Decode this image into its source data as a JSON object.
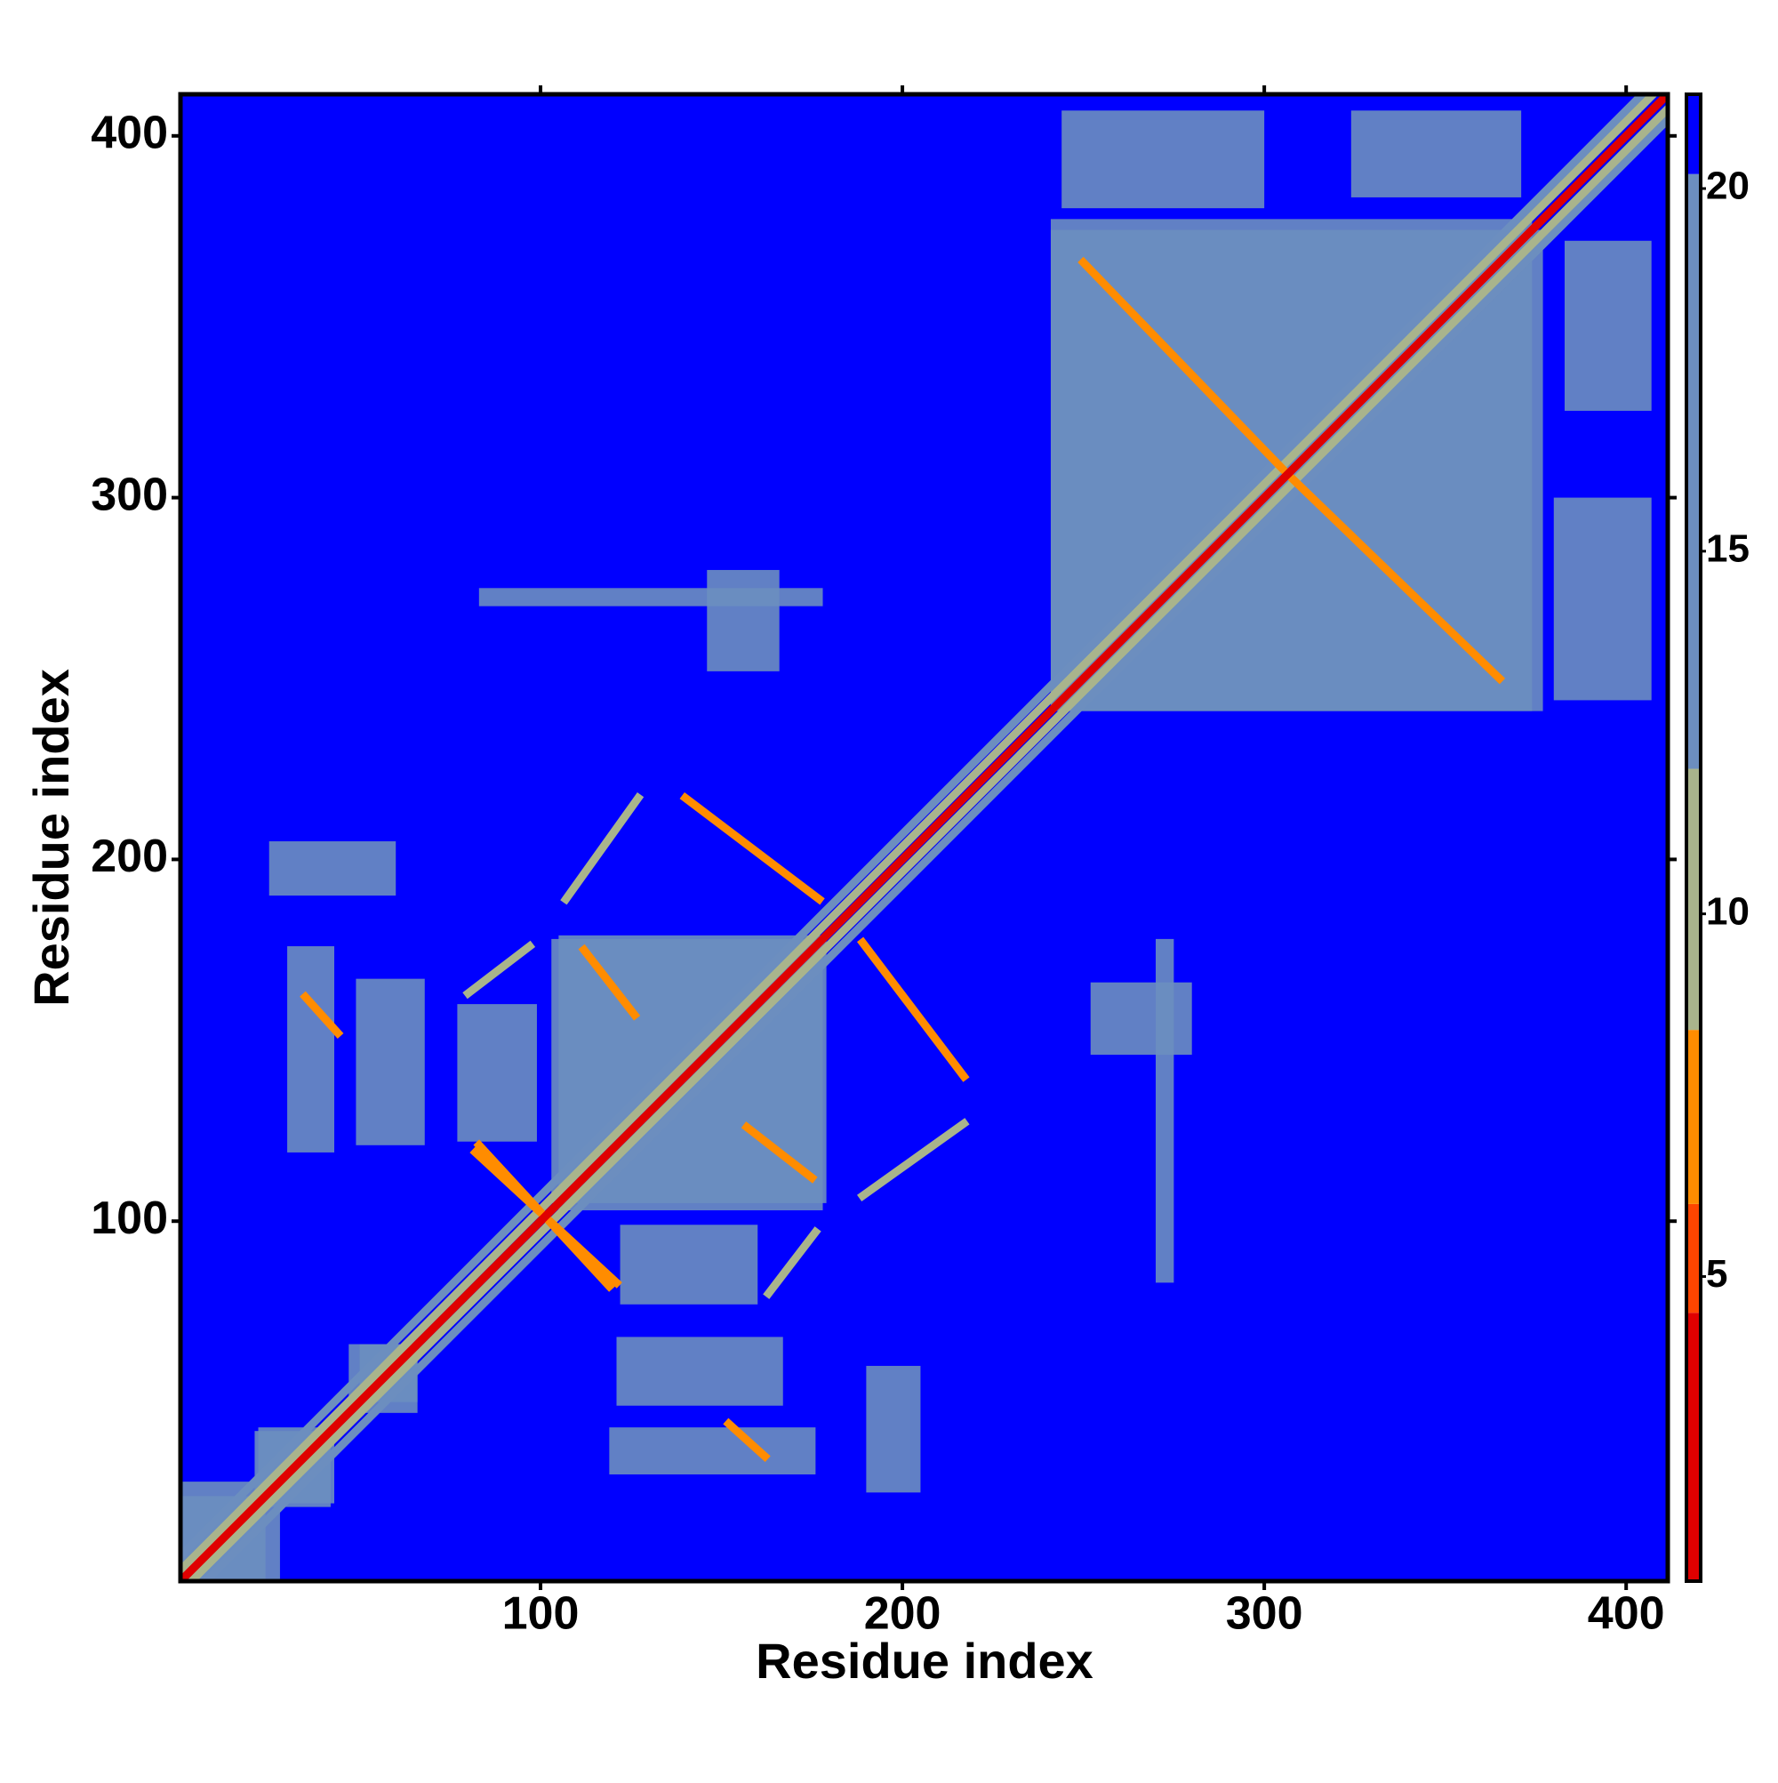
{
  "chart_data": {
    "type": "heatmap",
    "xlabel": "Residue index",
    "ylabel": "Residue index",
    "xlim": [
      0.5,
      411.5
    ],
    "ylim": [
      0.5,
      411.5
    ],
    "xticks": [
      100,
      200,
      300,
      400
    ],
    "yticks": [
      100,
      200,
      300,
      400
    ],
    "symmetric": true,
    "background": 21,
    "clim": [
      0.8,
      21.3
    ],
    "cticks": [
      5,
      10,
      15,
      20
    ],
    "colormap": {
      "stops": [
        0.8,
        4.5,
        6,
        8.4,
        12,
        20.2,
        21.3
      ],
      "colors": [
        "#e00000",
        "#ff4500",
        "#ff8c00",
        "#a9b48c",
        "#6c8ebf",
        "#0000ff"
      ]
    },
    "regions": [
      {
        "x": [
          241,
          374
        ],
        "y": [
          241,
          377
        ],
        "value": 16
      },
      {
        "x": [
          244,
          300
        ],
        "y": [
          380,
          407
        ],
        "value": 16
      },
      {
        "x": [
          324,
          371
        ],
        "y": [
          383,
          407
        ],
        "value": 16
      },
      {
        "x": [
          105,
          178
        ],
        "y": [
          103,
          179
        ],
        "value": 16
      },
      {
        "x": [
          30,
          43
        ],
        "y": [
          119,
          176
        ],
        "value": 16
      },
      {
        "x": [
          49,
          68
        ],
        "y": [
          121,
          167
        ],
        "value": 16
      },
      {
        "x": [
          77,
          99
        ],
        "y": [
          122,
          160
        ],
        "value": 16
      },
      {
        "x": [
          146,
          166
        ],
        "y": [
          252,
          280
        ],
        "value": 17
      },
      {
        "x": [
          83,
          178
        ],
        "y": [
          270,
          275
        ],
        "value": 18
      },
      {
        "x": [
          1,
          24
        ],
        "y": [
          1,
          28
        ],
        "value": 16
      },
      {
        "x": [
          22,
          42
        ],
        "y": [
          21,
          43
        ],
        "value": 16
      },
      {
        "x": [
          47,
          66
        ],
        "y": [
          50,
          66
        ],
        "value": 16
      },
      {
        "x": [
          25,
          60
        ],
        "y": [
          190,
          205
        ],
        "value": 17
      }
    ],
    "bands": [
      {
        "from": [
          1,
          8
        ],
        "to": [
          404,
          411
        ],
        "value": 14
      },
      {
        "from": [
          1,
          4
        ],
        "to": [
          407,
          411
        ],
        "value": 10
      },
      {
        "from": [
          250,
          365
        ],
        "to": [
          305,
          308
        ],
        "value": 6
      },
      {
        "from": [
          107,
          189
        ],
        "to": [
          127,
          217
        ],
        "value": 10
      },
      {
        "from": [
          140,
          217
        ],
        "to": [
          177,
          189
        ],
        "value": 6
      },
      {
        "from": [
          112,
          175
        ],
        "to": [
          126,
          157
        ],
        "value": 6
      },
      {
        "from": [
          80,
          163
        ],
        "to": [
          97,
          176
        ],
        "value": 10
      },
      {
        "from": [
          35,
          162
        ],
        "to": [
          44,
          152
        ],
        "value": 6
      },
      {
        "from": [
          82,
          119
        ],
        "to": [
          121,
          83
        ],
        "value": 6
      },
      {
        "from": [
          1,
          1
        ],
        "to": [
          411,
          411
        ],
        "value": 3.8
      }
    ]
  }
}
